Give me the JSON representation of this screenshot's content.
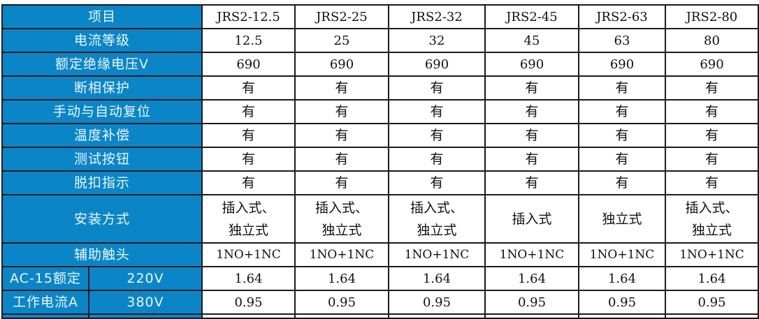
{
  "header": {
    "label": "项目",
    "models": [
      "JRS2-12.5",
      "JRS2-25",
      "JRS2-32",
      "JRS2-45",
      "JRS2-63",
      "JRS2-80"
    ]
  },
  "rows": [
    {
      "label": "电流等级",
      "values": [
        "12.5",
        "25",
        "32",
        "45",
        "63",
        "80"
      ]
    },
    {
      "label": "额定绝缘电压V",
      "values": [
        "690",
        "690",
        "690",
        "690",
        "690",
        "690"
      ]
    },
    {
      "label": "断相保护",
      "values": [
        "有",
        "有",
        "有",
        "有",
        "有",
        "有"
      ]
    },
    {
      "label": "手动与自动复位",
      "values": [
        "有",
        "有",
        "有",
        "有",
        "有",
        "有"
      ]
    },
    {
      "label": "温度补偿",
      "values": [
        "有",
        "有",
        "有",
        "有",
        "有",
        "有"
      ]
    },
    {
      "label": "测试按钮",
      "values": [
        "有",
        "有",
        "有",
        "有",
        "有",
        "有"
      ]
    },
    {
      "label": "脱扣指示",
      "values": [
        "有",
        "有",
        "有",
        "有",
        "有",
        "有"
      ]
    }
  ],
  "install": {
    "label": "安装方式",
    "values": [
      "插入式、\n独立式",
      "插入式、\n独立式",
      "插入式、\n独立式",
      "插入式",
      "独立式",
      "插入式、\n独立式"
    ]
  },
  "aux": {
    "label": "辅助触头",
    "values": [
      "1NO+1NC",
      "1NO+1NC",
      "1NO+1NC",
      "1NO+1NC",
      "1NO+1NC",
      "1NO+1NC"
    ]
  },
  "ac15": {
    "label_line1": "AC-15额定",
    "label_line2": "工作电流A",
    "rows": [
      {
        "voltage": "220V",
        "values": [
          "1.64",
          "1.64",
          "1.64",
          "1.64",
          "1.64",
          "1.64"
        ]
      },
      {
        "voltage": "380V",
        "values": [
          "0.95",
          "0.95",
          "0.95",
          "0.95",
          "0.95",
          "0.95"
        ]
      }
    ]
  }
}
